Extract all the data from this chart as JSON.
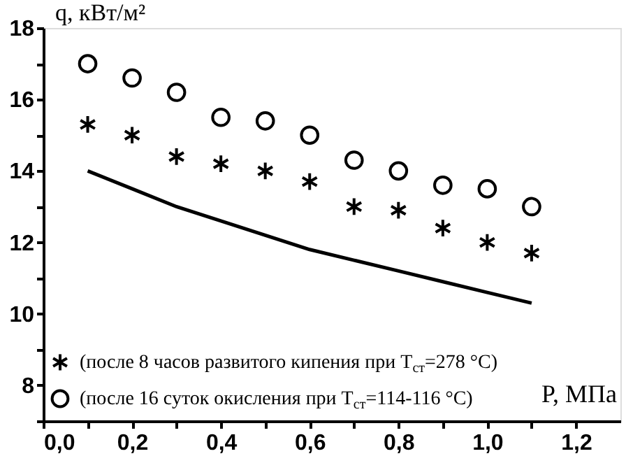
{
  "chart_data": {
    "type": "scatter",
    "xlabel": "P, МПа",
    "ylabel": "q, кВт/м²",
    "x": [
      0.1,
      0.2,
      0.3,
      0.4,
      0.5,
      0.6,
      0.7,
      0.8,
      0.9,
      1.0,
      1.1
    ],
    "series": [
      {
        "type": "line",
        "color": "#000000",
        "marker": "none",
        "line_style": "solid",
        "values": [
          14.0,
          13.5,
          13.0,
          12.6,
          12.2,
          11.8,
          11.5,
          11.2,
          10.9,
          10.6,
          10.3
        ]
      },
      {
        "name": "(после 8 часов развитого кипения при T$_{ст}$=278 °C)",
        "color": "#000000",
        "marker": "cross",
        "values": [
          15.3,
          15.0,
          14.4,
          14.2,
          14.0,
          13.7,
          13.0,
          12.9,
          12.4,
          12.0,
          11.7
        ]
      },
      {
        "name": "(после 16 суток окисления при T$_{ст}$=114-116 °C)",
        "color": "#000000",
        "marker": "circle",
        "values": [
          17.0,
          16.6,
          16.2,
          15.5,
          15.4,
          15.0,
          14.3,
          14.0,
          13.6,
          13.5,
          13.0
        ]
      }
    ],
    "xlim": [
      0,
      1.3
    ],
    "ylim": [
      7,
      18
    ],
    "xticks": [
      {
        "value": 0,
        "label": "0,0"
      },
      {
        "value": 0.1,
        "label": null
      },
      {
        "value": 0.2,
        "label": "0,2"
      },
      {
        "value": 0.3,
        "label": null
      },
      {
        "value": 0.4,
        "label": "0,4"
      },
      {
        "value": 0.5,
        "label": null
      },
      {
        "value": 0.6,
        "label": "0,6"
      },
      {
        "value": 0.7,
        "label": null
      },
      {
        "value": 0.8,
        "label": "0,8"
      },
      {
        "value": 0.9,
        "label": null
      },
      {
        "value": 1.0,
        "label": "1,0"
      },
      {
        "value": 1.1,
        "label": null
      },
      {
        "value": 1.2,
        "label": "1,2"
      }
    ],
    "yticks": [
      {
        "value": 7,
        "label": null
      },
      8,
      {
        "value": 9,
        "label": null
      },
      10,
      {
        "value": 11,
        "label": null
      },
      12,
      {
        "value": 13,
        "label": null
      },
      14,
      {
        "value": 15,
        "label": null
      },
      16,
      {
        "value": 17,
        "label": null
      },
      18
    ],
    "grid": false,
    "legend": "bottom left"
  }
}
